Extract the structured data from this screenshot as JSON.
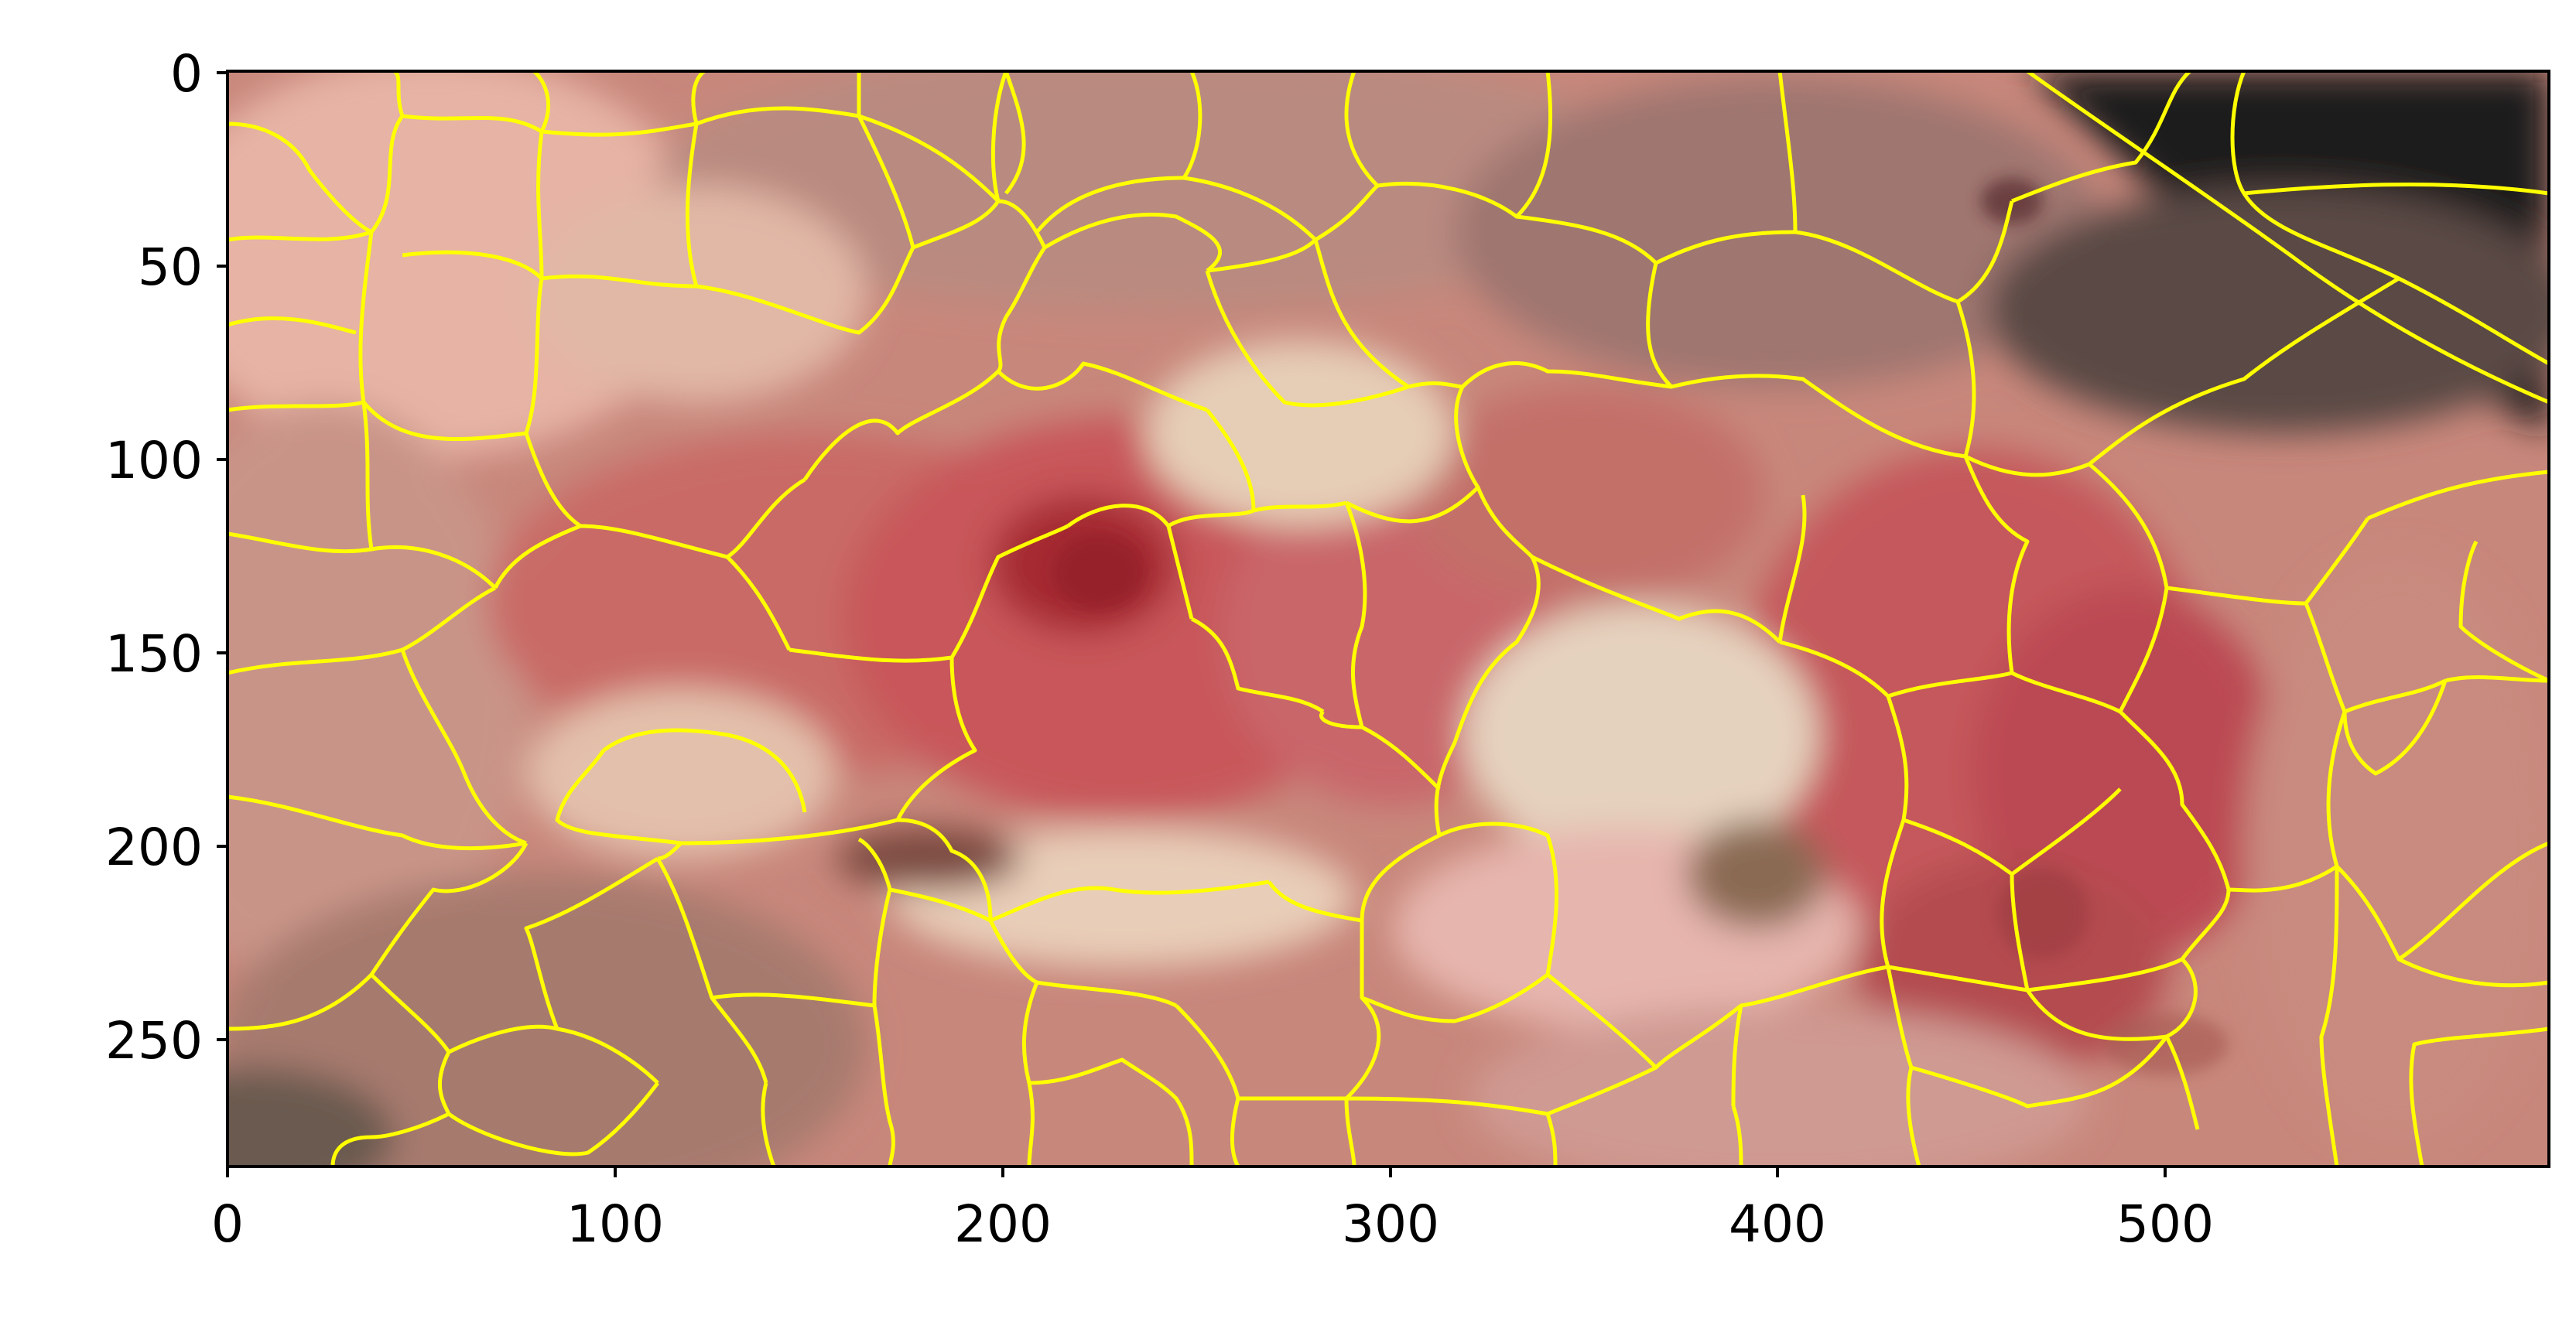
{
  "figure": {
    "type": "image-with-superpixel-overlay",
    "overlay_color": "#ffff00",
    "frame_color": "#000000",
    "background": "#ffffff"
  },
  "axes": {
    "x_ticks": [
      "0",
      "100",
      "200",
      "300",
      "400",
      "500"
    ],
    "y_ticks": [
      "0",
      "50",
      "100",
      "150",
      "200",
      "250"
    ],
    "x_range": [
      0,
      599
    ],
    "y_range": [
      0,
      283
    ],
    "y_inverted": true
  },
  "image": {
    "description_colors": {
      "skin_light": "#e3b0a2",
      "skin_mid": "#c98c80",
      "lesion_red": "#c85a5c",
      "lesion_dark": "#a73035",
      "pale_patch": "#e8cfb9",
      "shadow_dark": "#12181a",
      "shadow_mid": "#6e5a56"
    }
  }
}
